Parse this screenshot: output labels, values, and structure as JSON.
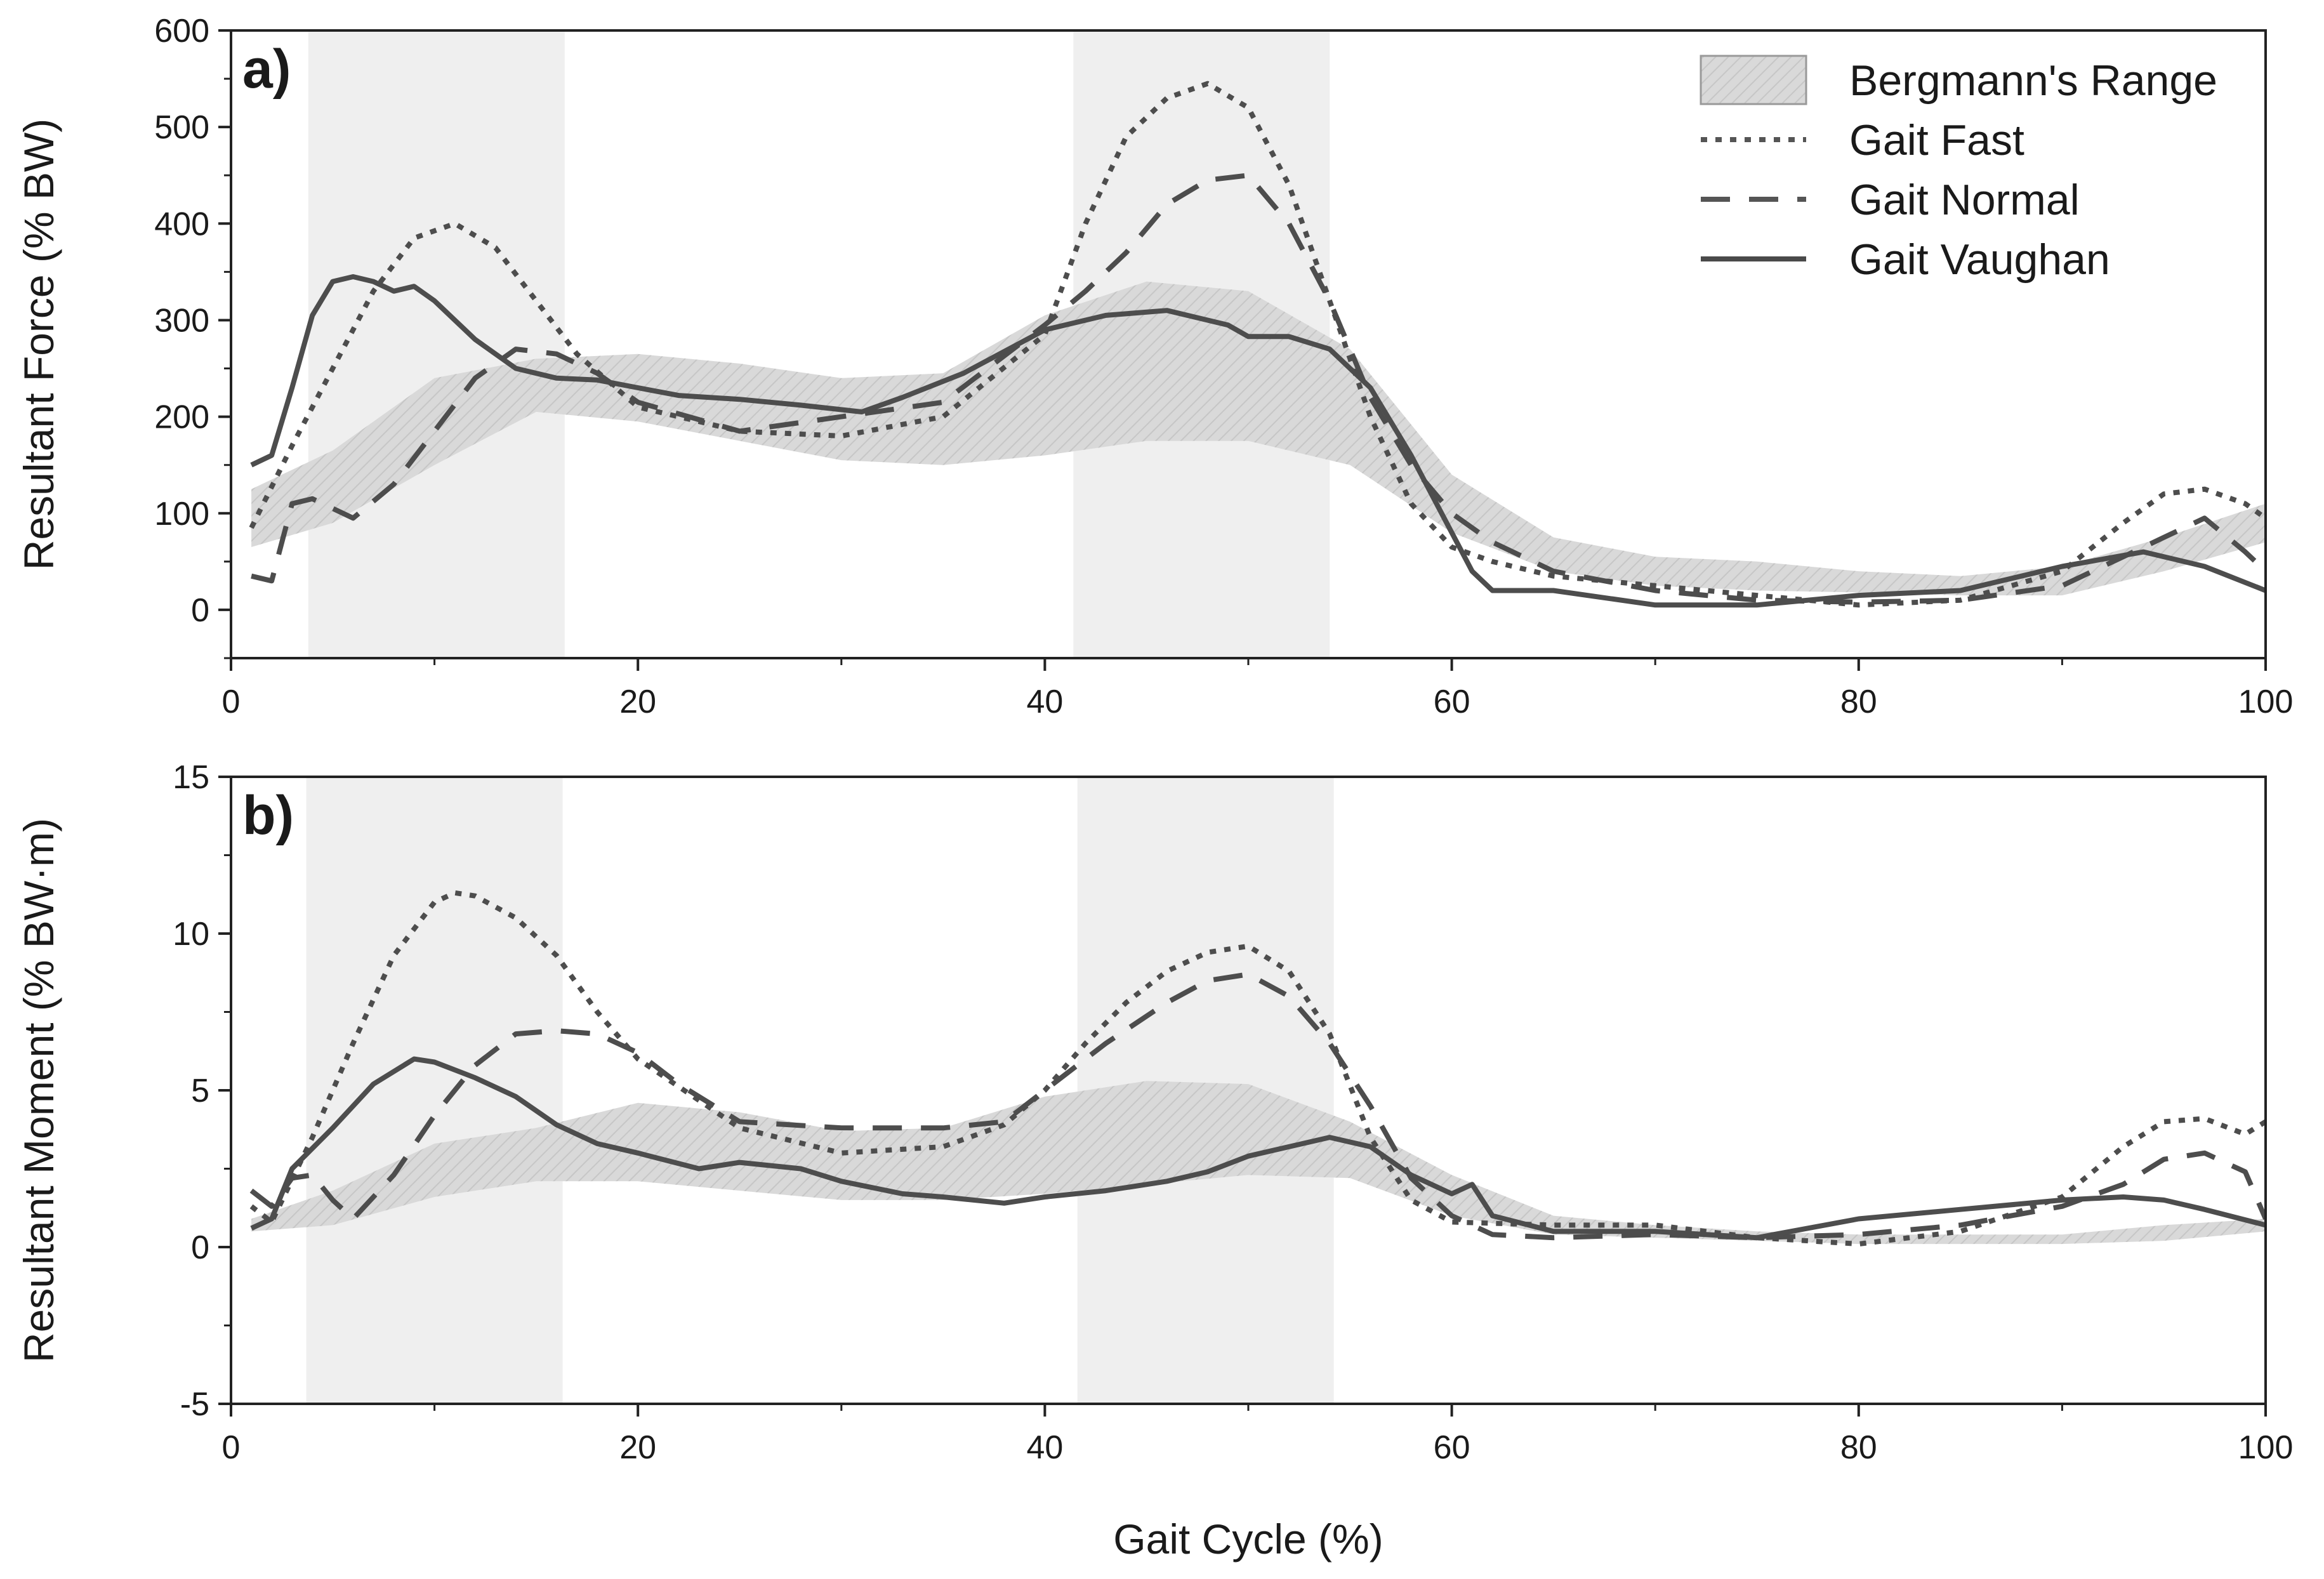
{
  "figure": {
    "xlabel": "Gait Cycle (%)"
  },
  "legend": [
    {
      "name": "Bergmann's Range",
      "kind": "band",
      "color": "#d9d9d9"
    },
    {
      "name": "Gait Fast",
      "kind": "line",
      "style": "dotted",
      "color": "#555555"
    },
    {
      "name": "Gait Normal",
      "kind": "line",
      "style": "dashed",
      "color": "#555555"
    },
    {
      "name": "Gait Vaughan",
      "kind": "line",
      "style": "solid",
      "color": "#4a4a4a"
    }
  ],
  "colors": {
    "highlight_band": "#efefef",
    "range_band": "#d9d9d9",
    "line": "#4d4d4d"
  },
  "chart_data": [
    {
      "type": "line",
      "label": "a)",
      "title": "",
      "xlabel": "",
      "ylabel": "Resultant Force (% BW)",
      "xlim": [
        0,
        100
      ],
      "ylim": [
        -50,
        600
      ],
      "xticks": [
        "0",
        "20",
        "40",
        "60",
        "80",
        "100"
      ],
      "yticks": [
        "0",
        "100",
        "200",
        "300",
        "400",
        "500",
        "600"
      ],
      "highlight_spans": [
        [
          3.8,
          16.4
        ],
        [
          41.4,
          54.0
        ]
      ],
      "range_band": {
        "name": "Bergmann's Range",
        "x": [
          1,
          5,
          10,
          15,
          20,
          25,
          30,
          35,
          40,
          45,
          50,
          55,
          60,
          65,
          70,
          75,
          80,
          85,
          90,
          95,
          100
        ],
        "lower": [
          65,
          90,
          150,
          205,
          195,
          175,
          155,
          150,
          160,
          175,
          175,
          150,
          80,
          40,
          25,
          20,
          18,
          15,
          15,
          40,
          70
        ],
        "upper": [
          125,
          165,
          240,
          260,
          265,
          255,
          240,
          245,
          305,
          340,
          330,
          270,
          140,
          75,
          55,
          50,
          40,
          35,
          45,
          75,
          110
        ]
      },
      "series": [
        {
          "name": "Gait Fast",
          "style": "dotted",
          "x": [
            1,
            3,
            5,
            7,
            9,
            11,
            13,
            15,
            17,
            20,
            25,
            30,
            35,
            40,
            42,
            44,
            46,
            48,
            50,
            52,
            54,
            56,
            58,
            60,
            62,
            65,
            70,
            75,
            80,
            85,
            90,
            93,
            95,
            97,
            99,
            100
          ],
          "y": [
            85,
            170,
            250,
            330,
            385,
            400,
            375,
            320,
            265,
            210,
            185,
            180,
            200,
            285,
            400,
            490,
            530,
            545,
            520,
            440,
            320,
            200,
            110,
            65,
            50,
            35,
            25,
            15,
            5,
            10,
            40,
            90,
            120,
            125,
            110,
            95
          ]
        },
        {
          "name": "Gait Normal",
          "style": "dashed",
          "x": [
            1,
            2,
            3,
            4,
            6,
            8,
            10,
            12,
            14,
            16,
            18,
            20,
            25,
            30,
            35,
            40,
            42,
            44,
            46,
            48,
            50,
            52,
            54,
            56,
            58,
            60,
            62,
            65,
            70,
            75,
            80,
            85,
            90,
            93,
            95,
            97,
            99,
            100
          ],
          "y": [
            35,
            30,
            110,
            115,
            95,
            130,
            185,
            240,
            270,
            265,
            245,
            215,
            185,
            200,
            215,
            295,
            330,
            370,
            420,
            445,
            450,
            400,
            320,
            220,
            150,
            100,
            70,
            40,
            20,
            10,
            8,
            10,
            25,
            55,
            75,
            95,
            60,
            40
          ]
        },
        {
          "name": "Gait Vaughan",
          "style": "solid",
          "x": [
            1,
            2,
            3,
            4,
            5,
            6,
            7,
            8,
            9,
            10,
            12,
            14,
            16,
            18,
            20,
            22,
            25,
            28,
            31,
            33,
            36,
            40,
            43,
            46,
            49,
            50,
            52,
            54,
            56,
            58,
            60,
            61,
            62,
            65,
            70,
            75,
            80,
            85,
            90,
            94,
            97,
            100
          ],
          "y": [
            150,
            160,
            230,
            305,
            340,
            345,
            340,
            330,
            335,
            320,
            280,
            250,
            240,
            238,
            230,
            222,
            218,
            212,
            205,
            220,
            245,
            290,
            305,
            310,
            295,
            283,
            283,
            270,
            230,
            160,
            80,
            40,
            20,
            20,
            5,
            5,
            15,
            20,
            45,
            60,
            45,
            20
          ]
        }
      ]
    },
    {
      "type": "line",
      "label": "b)",
      "title": "",
      "xlabel": "Gait Cycle (%)",
      "ylabel": "Resultant Moment (% BW·m)",
      "xlim": [
        0,
        100
      ],
      "ylim": [
        -5,
        15
      ],
      "xticks": [
        "0",
        "20",
        "40",
        "60",
        "80",
        "100"
      ],
      "yticks": [
        "-5",
        "0",
        "5",
        "10",
        "15"
      ],
      "highlight_spans": [
        [
          3.7,
          16.3
        ],
        [
          41.6,
          54.2
        ]
      ],
      "range_band": {
        "name": "Bergmann's Range",
        "x": [
          1,
          5,
          10,
          15,
          20,
          25,
          30,
          35,
          40,
          45,
          50,
          55,
          60,
          65,
          70,
          75,
          80,
          85,
          90,
          95,
          100
        ],
        "lower": [
          0.5,
          0.7,
          1.6,
          2.1,
          2.1,
          1.8,
          1.5,
          1.5,
          1.7,
          2.0,
          2.3,
          2.2,
          1.0,
          0.4,
          0.3,
          0.2,
          0.1,
          0.1,
          0.1,
          0.2,
          0.5
        ],
        "upper": [
          0.9,
          1.8,
          3.3,
          3.8,
          4.6,
          4.3,
          3.7,
          3.8,
          4.8,
          5.3,
          5.2,
          4.0,
          2.3,
          1.0,
          0.7,
          0.5,
          0.4,
          0.4,
          0.4,
          0.7,
          0.9
        ]
      },
      "series": [
        {
          "name": "Gait Fast",
          "style": "dotted",
          "x": [
            1,
            2,
            4,
            6,
            8,
            10,
            11,
            12,
            14,
            16,
            18,
            20,
            25,
            30,
            35,
            38,
            40,
            42,
            44,
            46,
            48,
            50,
            52,
            54,
            56,
            58,
            60,
            65,
            70,
            75,
            80,
            85,
            90,
            93,
            95,
            97,
            99,
            100
          ],
          "y": [
            1.3,
            0.8,
            3.5,
            6.5,
            9.3,
            11.0,
            11.3,
            11.2,
            10.5,
            9.3,
            7.5,
            6.0,
            3.8,
            3.0,
            3.2,
            3.9,
            5.0,
            6.5,
            7.8,
            8.8,
            9.4,
            9.6,
            8.8,
            6.8,
            3.5,
            1.5,
            0.8,
            0.7,
            0.7,
            0.3,
            0.1,
            0.5,
            1.6,
            3.2,
            4.0,
            4.1,
            3.6,
            4.0
          ]
        },
        {
          "name": "Gait Normal",
          "style": "dashed",
          "x": [
            1,
            2,
            3,
            4,
            5,
            6,
            8,
            10,
            12,
            14,
            16,
            18,
            20,
            22,
            25,
            30,
            35,
            38,
            40,
            43,
            46,
            48,
            50,
            52,
            54,
            56,
            58,
            60,
            62,
            65,
            70,
            75,
            80,
            85,
            90,
            93,
            95,
            97,
            99,
            100
          ],
          "y": [
            1.8,
            1.3,
            2.2,
            2.3,
            1.5,
            0.9,
            2.3,
            4.2,
            5.8,
            6.8,
            6.9,
            6.8,
            6.2,
            5.2,
            4.0,
            3.8,
            3.8,
            4.0,
            5.0,
            6.5,
            7.8,
            8.5,
            8.7,
            8.0,
            6.5,
            4.5,
            2.2,
            1.0,
            0.4,
            0.3,
            0.4,
            0.3,
            0.4,
            0.7,
            1.3,
            2.0,
            2.8,
            3.0,
            2.4,
            0.9
          ]
        },
        {
          "name": "Gait Vaughan",
          "style": "solid",
          "x": [
            1,
            2,
            3,
            5,
            7,
            9,
            10,
            12,
            14,
            16,
            18,
            20,
            23,
            25,
            28,
            30,
            33,
            35,
            38,
            40,
            43,
            46,
            48,
            50,
            52,
            54,
            56,
            58,
            60,
            61,
            62,
            65,
            70,
            75,
            80,
            85,
            90,
            93,
            95,
            97,
            100
          ],
          "y": [
            0.6,
            0.9,
            2.5,
            3.8,
            5.2,
            6.0,
            5.9,
            5.4,
            4.8,
            3.9,
            3.3,
            3.0,
            2.5,
            2.7,
            2.5,
            2.1,
            1.7,
            1.6,
            1.4,
            1.6,
            1.8,
            2.1,
            2.4,
            2.9,
            3.2,
            3.5,
            3.2,
            2.3,
            1.7,
            2.0,
            1.0,
            0.5,
            0.5,
            0.3,
            0.9,
            1.2,
            1.5,
            1.6,
            1.5,
            1.2,
            0.7
          ]
        }
      ]
    }
  ]
}
